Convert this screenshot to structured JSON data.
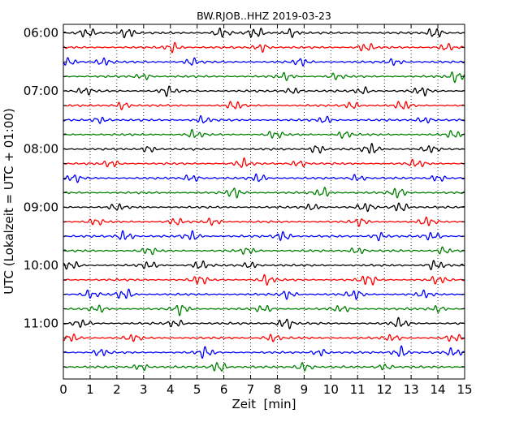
{
  "chart_data": {
    "type": "line",
    "plot_kind": "dayplot",
    "title": "BW.RJOB..HHZ 2019-03-23",
    "xlabel": "Zeit  [min]",
    "ylabel": "UTC (Lokalzeit = UTC + 01:00)",
    "xlim": [
      0,
      15
    ],
    "x_ticks": [
      "0",
      "1",
      "2",
      "3",
      "4",
      "5",
      "6",
      "7",
      "8",
      "9",
      "10",
      "11",
      "12",
      "13",
      "14",
      "15"
    ],
    "y_ticks": [
      "06:00",
      "07:00",
      "08:00",
      "09:00",
      "10:00",
      "11:00"
    ],
    "trace_start_times": [
      "06:00",
      "06:15",
      "06:30",
      "06:45",
      "07:00",
      "07:15",
      "07:30",
      "07:45",
      "08:00",
      "08:15",
      "08:30",
      "08:45",
      "09:00",
      "09:15",
      "09:30",
      "09:45",
      "10:00",
      "10:15",
      "10:30",
      "10:45",
      "11:00",
      "11:15",
      "11:30",
      "11:45"
    ],
    "trace_minutes_per_line": 15,
    "colors": [
      "#000000",
      "#ff0000",
      "#0000ff",
      "#008000"
    ],
    "grid": "vertical dotted at each minute",
    "legend": "none",
    "bursts": [
      [
        [
          0.9,
          0.75
        ],
        [
          2.4,
          0.9
        ],
        [
          5.9,
          0.8
        ],
        [
          7.2,
          0.9
        ],
        [
          8.5,
          0.7
        ],
        [
          13.9,
          0.95
        ]
      ],
      [
        [
          4.1,
          0.8
        ],
        [
          7.4,
          0.7
        ],
        [
          11.3,
          0.75
        ],
        [
          14.3,
          0.6
        ]
      ],
      [
        [
          0.2,
          0.6
        ],
        [
          1.5,
          0.65
        ],
        [
          4.8,
          0.6
        ],
        [
          8.9,
          0.6
        ],
        [
          12.4,
          0.55
        ]
      ],
      [
        [
          3.0,
          0.5
        ],
        [
          8.3,
          0.55
        ],
        [
          10.2,
          0.5
        ],
        [
          14.7,
          0.95
        ]
      ],
      [
        [
          0.8,
          0.6
        ],
        [
          3.9,
          0.75
        ],
        [
          8.6,
          0.55
        ],
        [
          11.2,
          0.6
        ],
        [
          13.4,
          0.7
        ]
      ],
      [
        [
          2.2,
          0.65
        ],
        [
          6.4,
          0.7
        ],
        [
          10.8,
          0.6
        ],
        [
          12.7,
          0.75
        ]
      ],
      [
        [
          1.4,
          0.55
        ],
        [
          5.2,
          0.6
        ],
        [
          9.8,
          0.55
        ],
        [
          13.5,
          0.55
        ]
      ],
      [
        [
          4.9,
          0.7
        ],
        [
          7.9,
          0.65
        ],
        [
          10.5,
          0.6
        ],
        [
          14.6,
          0.6
        ]
      ],
      [
        [
          3.2,
          0.55
        ],
        [
          9.5,
          0.75
        ],
        [
          11.5,
          0.95
        ],
        [
          13.7,
          0.55
        ]
      ],
      [
        [
          1.8,
          0.6
        ],
        [
          6.7,
          0.75
        ],
        [
          8.8,
          0.6
        ],
        [
          13.2,
          0.65
        ]
      ],
      [
        [
          0.4,
          0.6
        ],
        [
          4.8,
          0.65
        ],
        [
          7.3,
          0.7
        ],
        [
          11.0,
          0.6
        ],
        [
          14.0,
          0.6
        ]
      ],
      [
        [
          6.4,
          0.85
        ],
        [
          9.7,
          0.8
        ],
        [
          12.5,
          0.85
        ]
      ],
      [
        [
          2.0,
          0.55
        ],
        [
          9.3,
          0.55
        ],
        [
          11.3,
          0.7
        ],
        [
          12.6,
          0.85
        ]
      ],
      [
        [
          1.2,
          0.55
        ],
        [
          4.2,
          0.55
        ],
        [
          5.6,
          0.6
        ],
        [
          11.1,
          0.6
        ],
        [
          13.6,
          0.7
        ]
      ],
      [
        [
          2.3,
          0.9
        ],
        [
          4.8,
          0.8
        ],
        [
          8.2,
          0.85
        ],
        [
          11.8,
          0.65
        ],
        [
          13.8,
          0.7
        ]
      ],
      [
        [
          3.2,
          0.55
        ],
        [
          6.9,
          0.55
        ],
        [
          11.0,
          0.6
        ],
        [
          14.2,
          0.6
        ]
      ],
      [
        [
          0.3,
          0.7
        ],
        [
          3.2,
          0.6
        ],
        [
          5.1,
          0.7
        ],
        [
          7.0,
          0.55
        ],
        [
          13.9,
          0.85
        ]
      ],
      [
        [
          5.1,
          0.75
        ],
        [
          7.6,
          0.8
        ],
        [
          11.4,
          0.95
        ],
        [
          14.0,
          0.65
        ]
      ],
      [
        [
          1.0,
          0.65
        ],
        [
          2.3,
          0.95
        ],
        [
          8.4,
          0.7
        ],
        [
          10.9,
          0.75
        ],
        [
          13.5,
          0.55
        ]
      ],
      [
        [
          1.3,
          0.55
        ],
        [
          4.4,
          0.9
        ],
        [
          7.5,
          0.6
        ],
        [
          10.4,
          0.55
        ],
        [
          14.0,
          0.55
        ]
      ],
      [
        [
          0.7,
          0.6
        ],
        [
          4.2,
          0.65
        ],
        [
          8.3,
          0.95
        ],
        [
          12.6,
          0.8
        ]
      ],
      [
        [
          0.3,
          0.65
        ],
        [
          2.6,
          0.55
        ],
        [
          7.8,
          0.65
        ],
        [
          12.3,
          0.55
        ],
        [
          14.6,
          0.6
        ]
      ],
      [
        [
          1.4,
          0.6
        ],
        [
          5.3,
          0.9
        ],
        [
          9.6,
          0.6
        ],
        [
          12.6,
          0.95
        ],
        [
          14.6,
          0.7
        ]
      ],
      [
        [
          2.9,
          0.6
        ],
        [
          5.8,
          0.95
        ],
        [
          9.0,
          0.75
        ],
        [
          12.0,
          0.55
        ]
      ]
    ]
  }
}
